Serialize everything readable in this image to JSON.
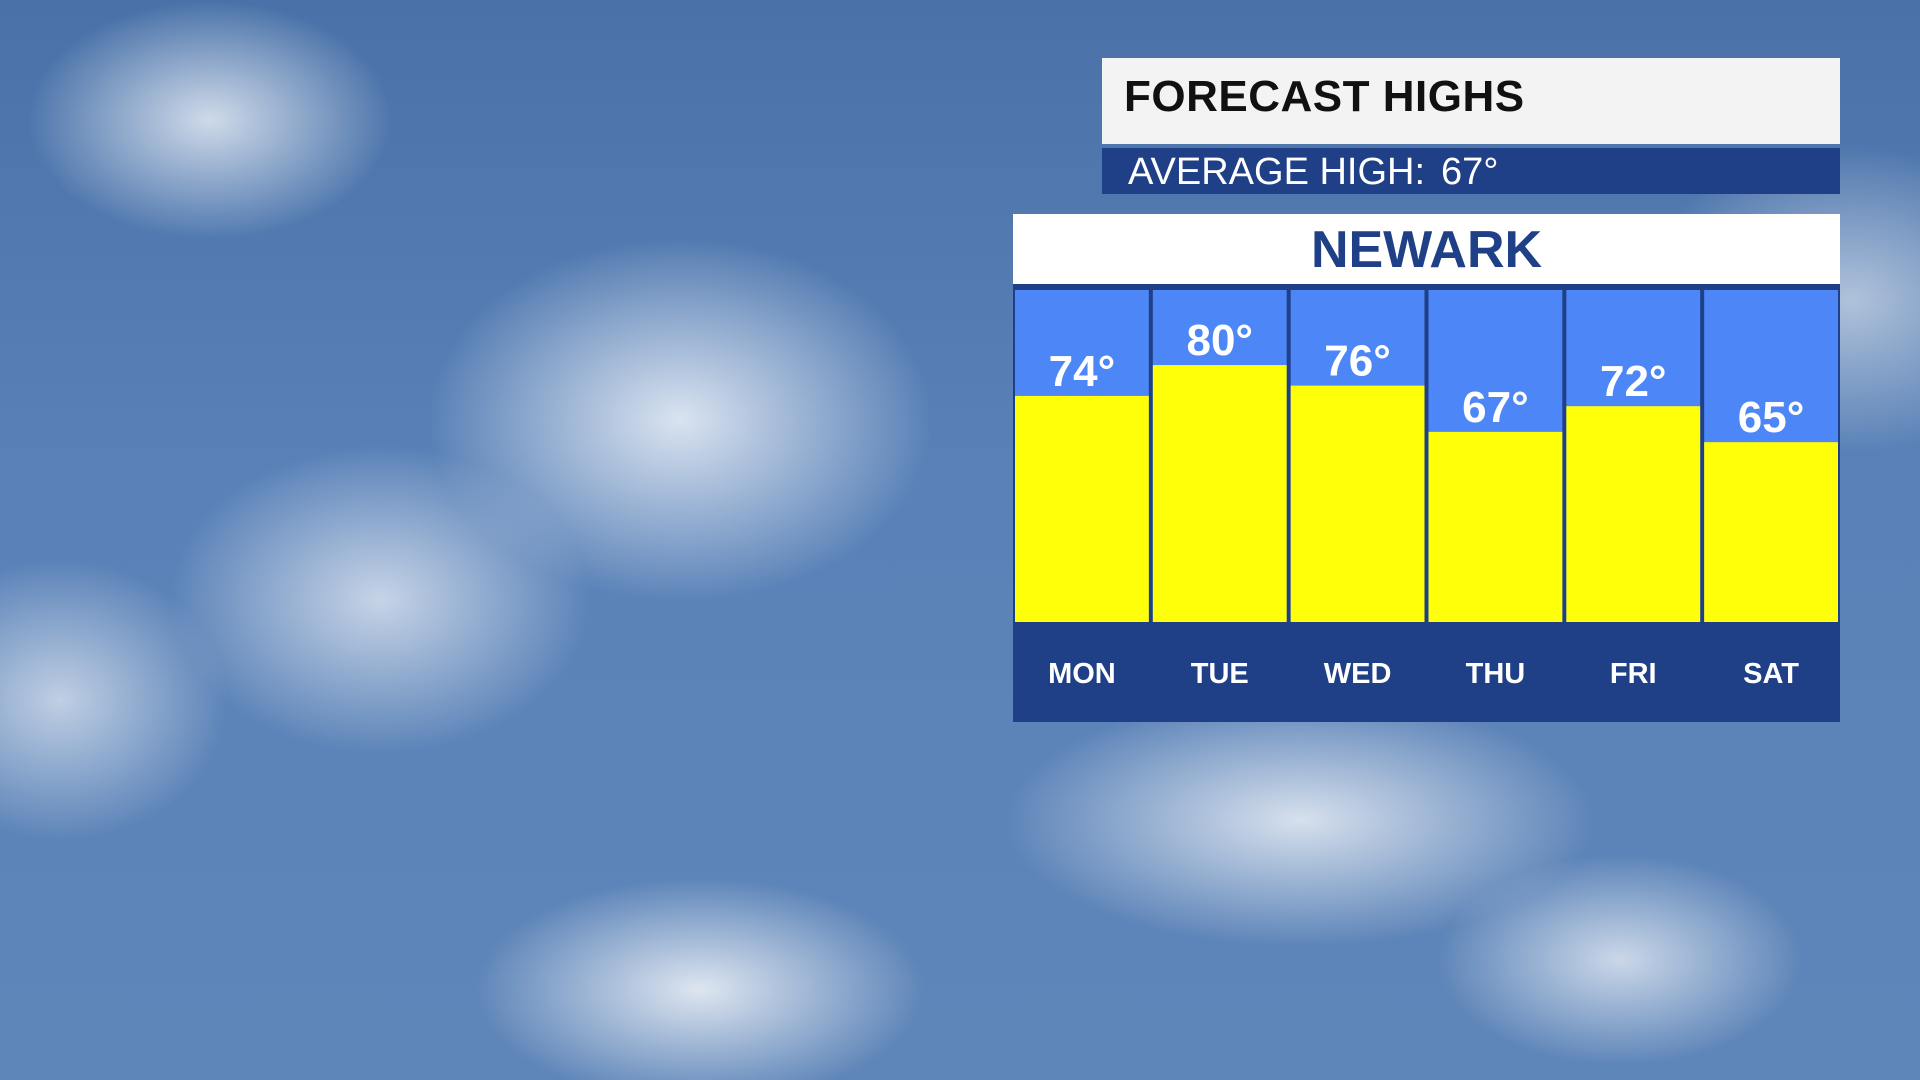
{
  "header": {
    "title": "FORECAST HIGHS",
    "average_label": "AVERAGE HIGH:",
    "average_value": "67°"
  },
  "location": "NEWARK",
  "colors": {
    "title_bg": "#f3f3f3",
    "navy": "#1f3f86",
    "column_bg": "#4d86f7",
    "bar_fill": "#ffff0a",
    "day_band": "#1f3f86"
  },
  "chart_data": {
    "type": "bar",
    "title": "FORECAST HIGHS",
    "subtitle": "AVERAGE HIGH: 67°",
    "location": "NEWARK",
    "categories": [
      "MON",
      "TUE",
      "WED",
      "THU",
      "FRI",
      "SAT"
    ],
    "values": [
      74,
      80,
      76,
      67,
      72,
      65
    ],
    "value_labels": [
      "74°",
      "80°",
      "76°",
      "67°",
      "72°",
      "65°"
    ],
    "ylim": [
      30,
      95
    ],
    "grid": false,
    "legend": "none"
  }
}
